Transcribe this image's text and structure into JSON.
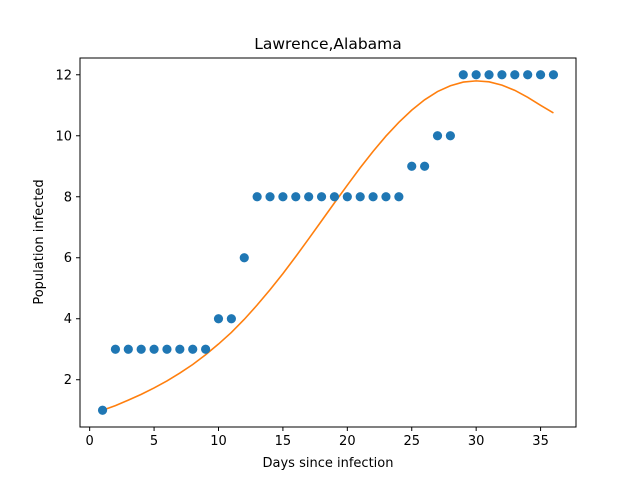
{
  "chart_data": {
    "type": "scatter",
    "title": "Lawrence,Alabama",
    "xlabel": "Days since infection",
    "ylabel": "Population infected",
    "xlim": [
      -0.75,
      37.75
    ],
    "ylim": [
      0.45,
      12.55
    ],
    "xticks": [
      0,
      5,
      10,
      15,
      20,
      25,
      30,
      35
    ],
    "yticks": [
      2,
      4,
      6,
      8,
      10,
      12
    ],
    "grid": false,
    "series": [
      {
        "kind": "points",
        "color": "#1f77b4",
        "x": [
          1,
          2,
          3,
          4,
          5,
          6,
          7,
          8,
          9,
          10,
          11,
          12,
          13,
          14,
          15,
          16,
          17,
          18,
          19,
          20,
          21,
          22,
          23,
          24,
          25,
          26,
          27,
          28,
          29,
          30,
          31,
          32,
          33,
          34,
          35,
          36
        ],
        "y": [
          1,
          3,
          3,
          3,
          3,
          3,
          3,
          3,
          3,
          4,
          4,
          6,
          8,
          8,
          8,
          8,
          8,
          8,
          8,
          8,
          8,
          8,
          8,
          8,
          9,
          9,
          10,
          10,
          12,
          12,
          12,
          12,
          12,
          12,
          12,
          12
        ]
      },
      {
        "kind": "line",
        "color": "#ff7f0e",
        "x": [
          1,
          2,
          3,
          4,
          5,
          6,
          7,
          8,
          9,
          10,
          11,
          12,
          13,
          14,
          15,
          16,
          17,
          18,
          19,
          20,
          21,
          22,
          23,
          24,
          25,
          26,
          27,
          28,
          29,
          30,
          31,
          32,
          33,
          34,
          35,
          36
        ],
        "y": [
          1.0,
          1.15,
          1.33,
          1.52,
          1.73,
          1.96,
          2.22,
          2.5,
          2.82,
          3.17,
          3.55,
          3.98,
          4.45,
          4.95,
          5.48,
          6.04,
          6.62,
          7.21,
          7.8,
          8.38,
          8.95,
          9.49,
          9.99,
          10.44,
          10.84,
          11.18,
          11.45,
          11.64,
          11.76,
          11.8,
          11.77,
          11.66,
          11.49,
          11.26,
          11.0,
          10.75
        ]
      }
    ]
  }
}
